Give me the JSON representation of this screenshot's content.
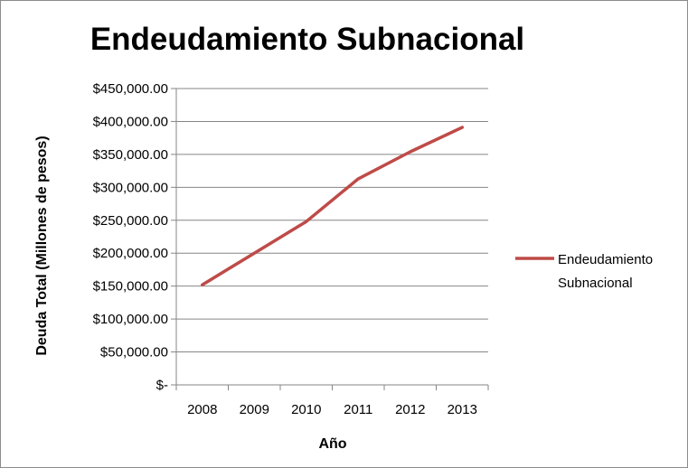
{
  "chart_data": {
    "type": "line",
    "title": "Endeudamiento Subnacional",
    "xlabel": "Año",
    "ylabel": "Deuda Total  (Millones de pesos)",
    "categories": [
      "2008",
      "2009",
      "2010",
      "2011",
      "2012",
      "2013"
    ],
    "series": [
      {
        "name": "Endeudamiento Subnacional",
        "values": [
          152000,
          200000,
          248000,
          313000,
          354000,
          391000
        ],
        "color": "#be4b48"
      }
    ],
    "ylim": [
      0,
      450000
    ],
    "yticks": [
      {
        "value": 0,
        "label": "$-"
      },
      {
        "value": 50000,
        "label": "$50,000.00"
      },
      {
        "value": 100000,
        "label": "$100,000.00"
      },
      {
        "value": 150000,
        "label": "$150,000.00"
      },
      {
        "value": 200000,
        "label": "$200,000.00"
      },
      {
        "value": 250000,
        "label": "$250,000.00"
      },
      {
        "value": 300000,
        "label": "$300,000.00"
      },
      {
        "value": 350000,
        "label": "$350,000.00"
      },
      {
        "value": 400000,
        "label": "$400,000.00"
      },
      {
        "value": 450000,
        "label": "$450,000.00"
      }
    ],
    "legend": {
      "position": "right",
      "lines": [
        "Endeudamiento",
        "Subnacional"
      ]
    },
    "grid": true
  }
}
